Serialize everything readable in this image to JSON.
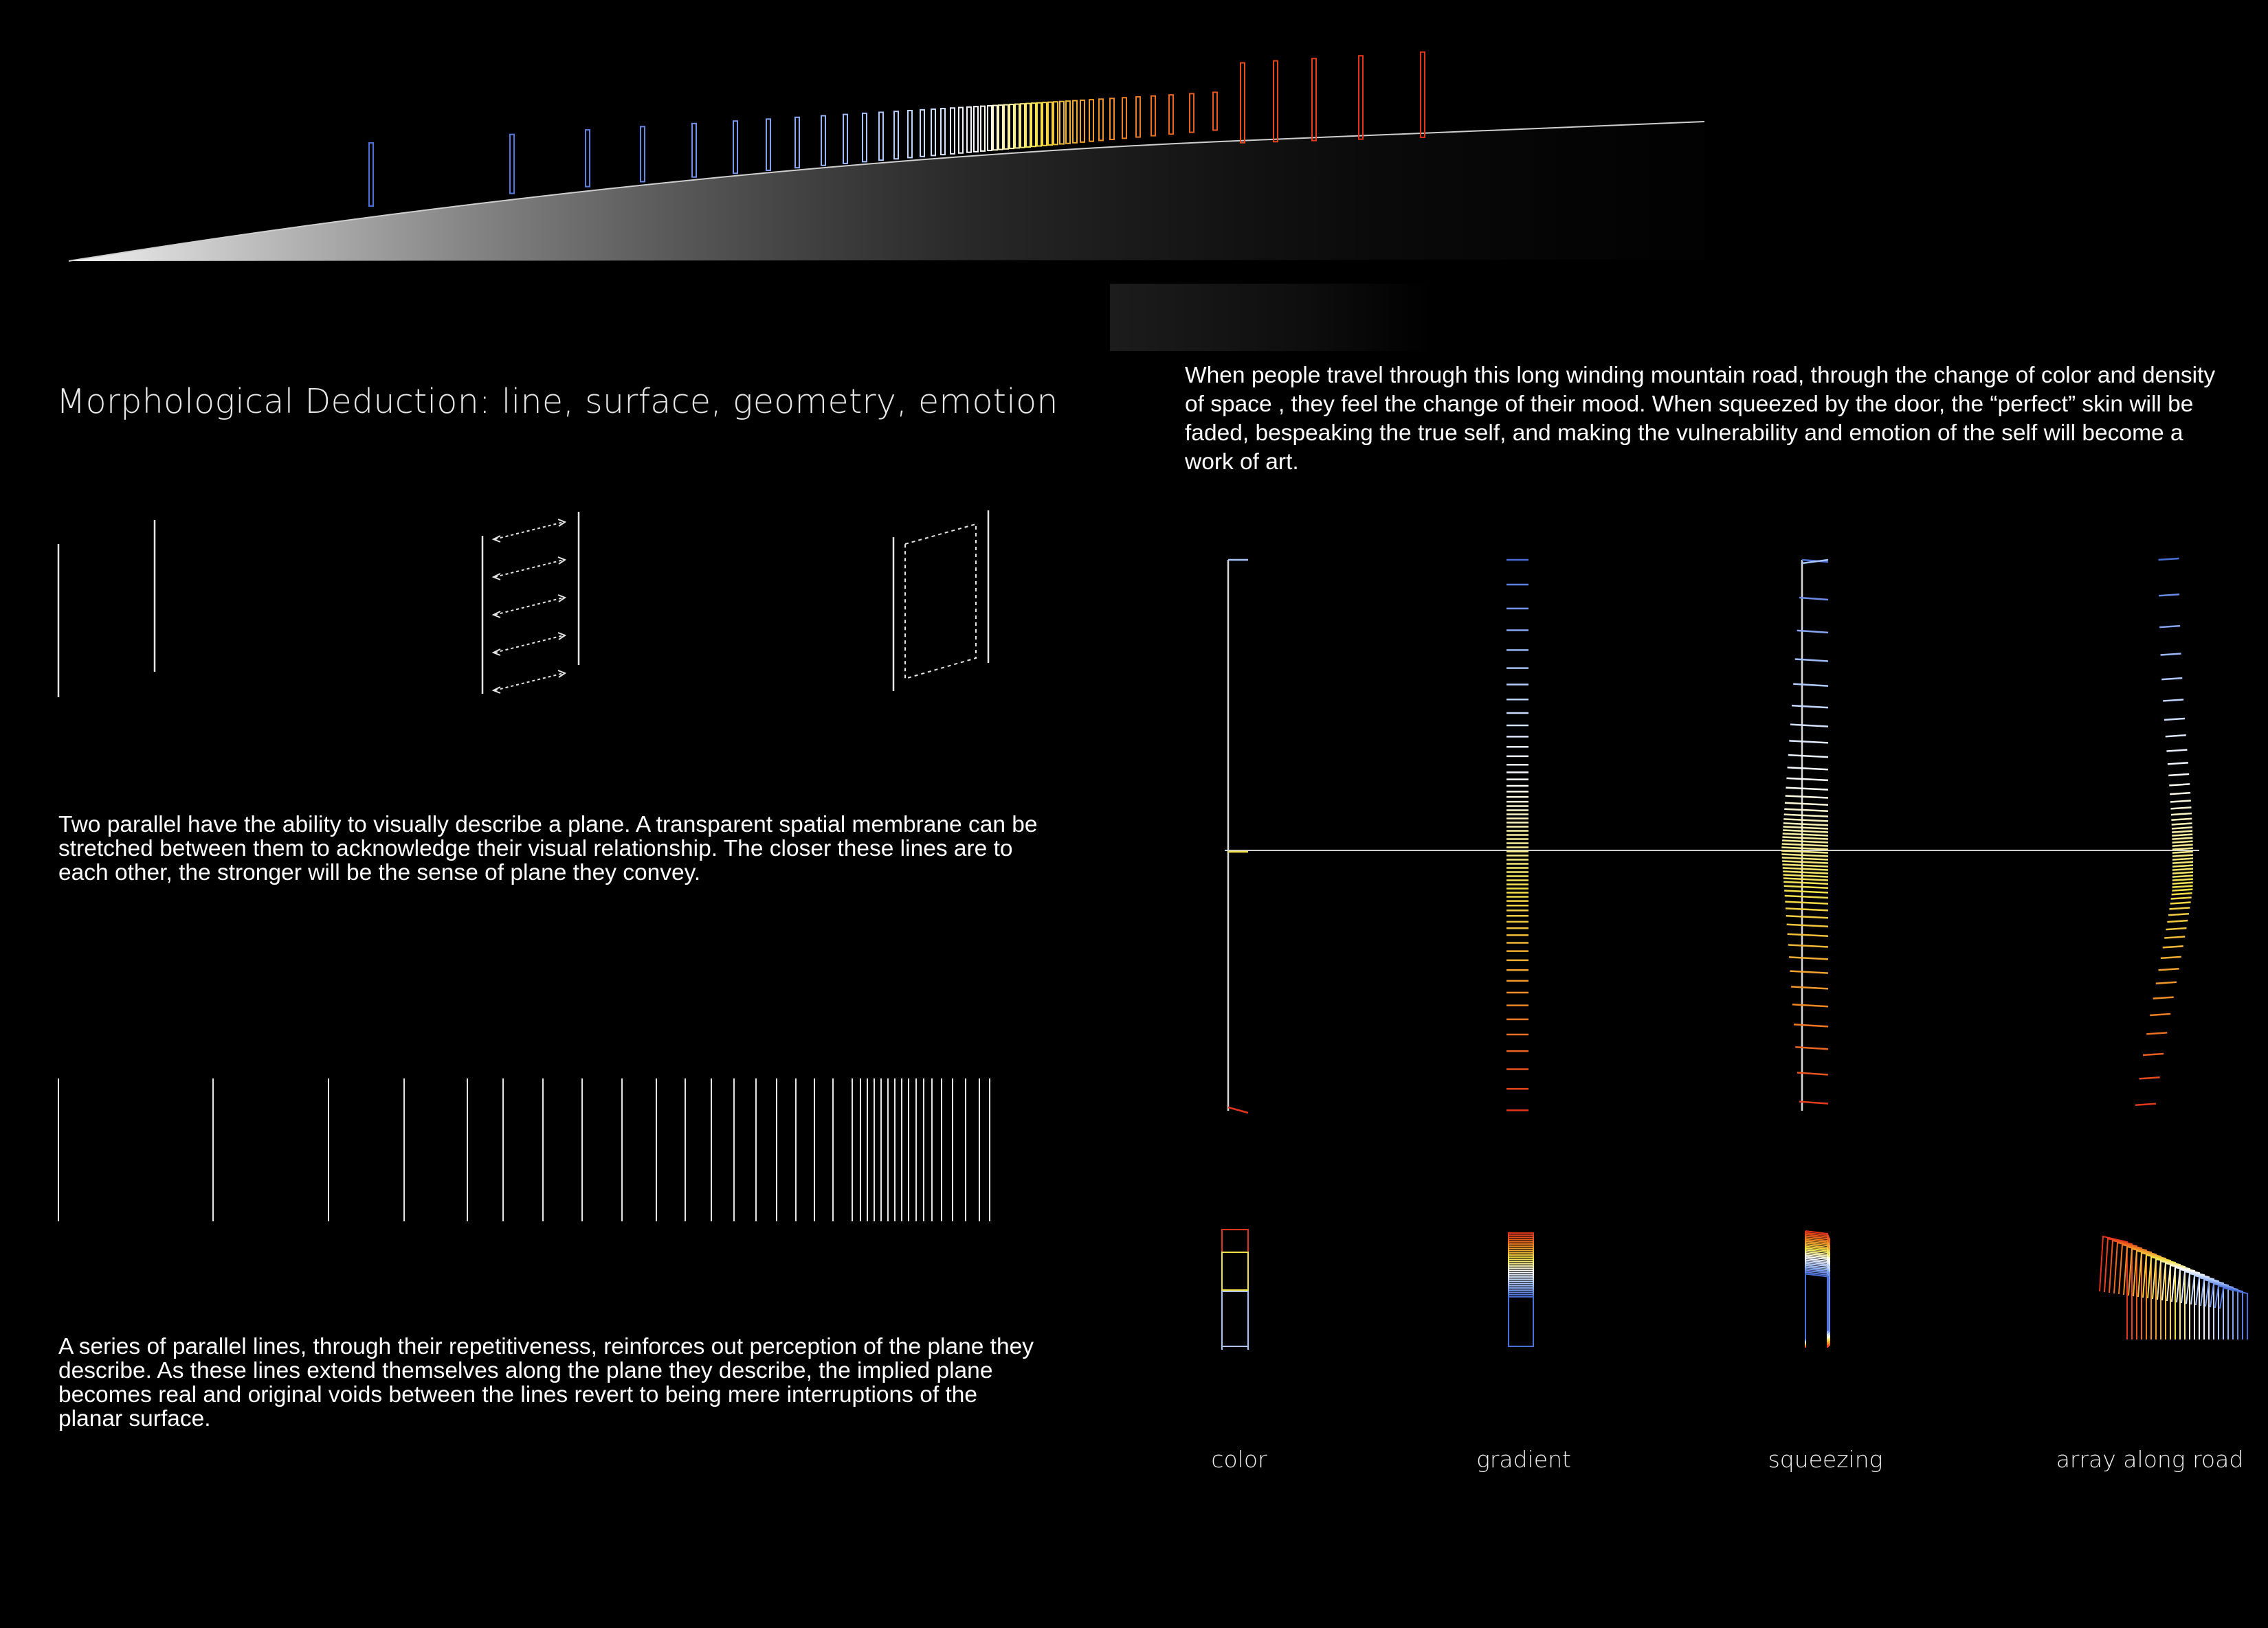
{
  "title": "Morphological Deduction: line, surface, geometry, emotion",
  "intro_text": "When people travel through this long winding mountain road, through the change of color and density of space ,  they feel the change of their mood. When squeezed by  the door, the “perfect” skin will be faded, bespeaking the true self, and making the vulnerability and emotion of the self will become a work of art.",
  "paragraph_plane": "Two parallel have the ability to visually describe a plane. A transparent spatial membrane can be stretched between them to acknowledge their visual relationship. The closer these lines are to each other, the stronger will be the sense of plane they convey.",
  "paragraph_series": "A series of parallel lines, through their repetitiveness, reinforces out perception of the plane they describe. As these lines extend themselves along the plane they describe, the implied plane becomes real and original voids between the lines revert to being mere interruptions of the planar surface.",
  "captions": {
    "color": "color",
    "gradient": "gradient",
    "squeezing": "squeezing",
    "array": "array along road"
  },
  "colors": {
    "background": "#000000",
    "blue": "#4a6fd8",
    "light_blue": "#a8c4ff",
    "white": "#ffffff",
    "yellow": "#f3e14a",
    "orange": "#f08a24",
    "red": "#e2341c"
  }
}
